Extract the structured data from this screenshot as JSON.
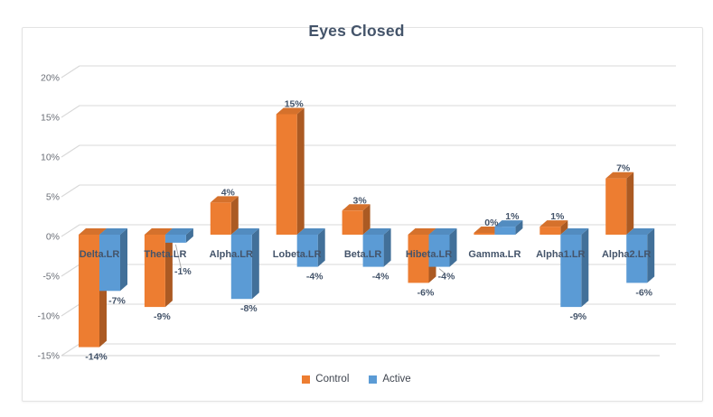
{
  "chart_data": {
    "type": "bar",
    "subtype": "3d-clustered-column",
    "title": "Eyes Closed",
    "categories": [
      "Delta.LR",
      "Theta.LR",
      "Alpha.LR",
      "Lobeta.LR",
      "Beta.LR",
      "Hibeta.LR",
      "Gamma.LR",
      "Alpha1.LR",
      "Alpha2.LR"
    ],
    "series": [
      {
        "name": "Control",
        "color": "#ED7D31",
        "values": [
          -14,
          -9,
          4,
          15,
          3,
          -6,
          0,
          1,
          7
        ]
      },
      {
        "name": "Active",
        "color": "#5B9BD5",
        "values": [
          -7,
          -1,
          -8,
          -4,
          -4,
          -4,
          1,
          -9,
          -6
        ]
      }
    ],
    "unit": "%",
    "data_labels": true,
    "label_leaders": [
      {
        "category": "Theta.LR",
        "series": "Active"
      },
      {
        "category": "Hibeta.LR",
        "series": "Active"
      }
    ],
    "ylim": [
      -15,
      20
    ],
    "ytick_values": [
      20,
      15,
      10,
      5,
      0,
      -5,
      -10,
      -15
    ],
    "ytick_labels": [
      "20%",
      "15%",
      "10%",
      "5%",
      "0%",
      "-5%",
      "-10%",
      "-15%"
    ],
    "grid": true,
    "legend_position": "bottom"
  },
  "legend": {
    "items": [
      {
        "label": "Control",
        "color": "#ED7D31"
      },
      {
        "label": "Active",
        "color": "#5B9BD5"
      }
    ]
  }
}
